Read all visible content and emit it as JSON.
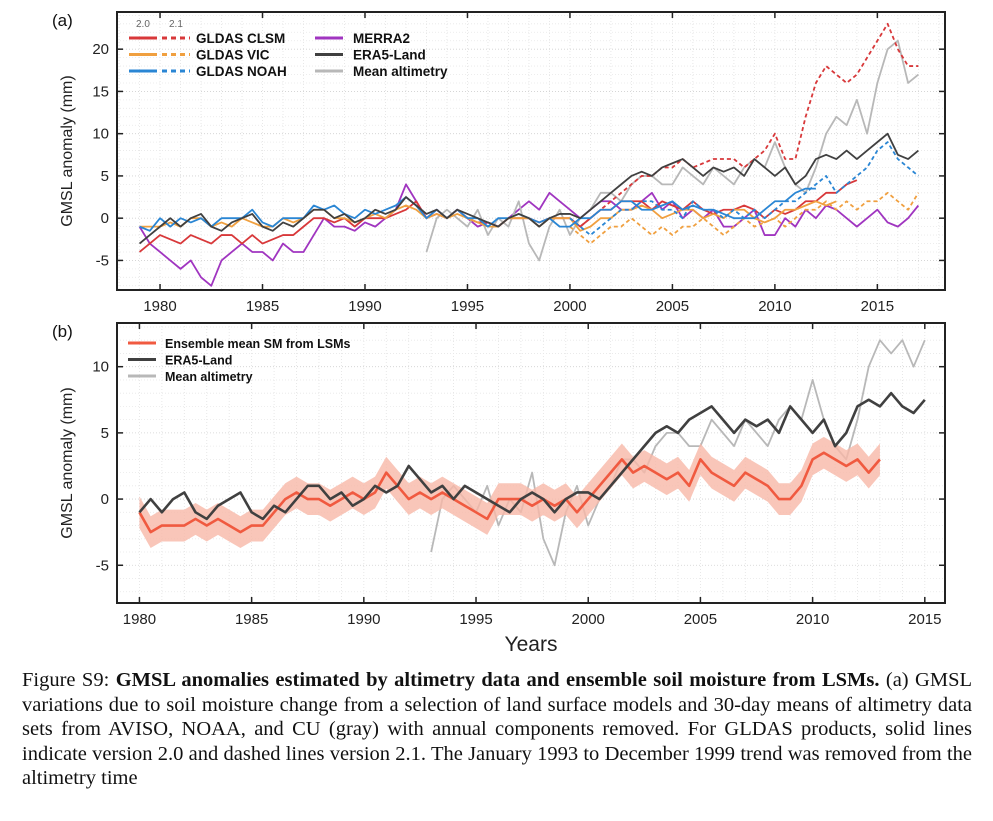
{
  "chart_data": [
    {
      "panel_label": "(a)",
      "type": "line",
      "ylabel": "GMSL anomaly (mm)",
      "xlabel": "",
      "xlim": [
        1977.9,
        2018.3
      ],
      "ylim": [
        -8.5,
        24.4
      ],
      "xticks": [
        1980,
        1985,
        1990,
        1995,
        2000,
        2005,
        2010,
        2015
      ],
      "yticks": [
        -5,
        0,
        5,
        10,
        15,
        20
      ],
      "grid": true,
      "legend_headers": [
        "2.0",
        "2.1"
      ],
      "series": [
        {
          "name": "MERRA2",
          "color": "#a035c0",
          "dash": false,
          "start": 1979,
          "step": 0.5,
          "values": [
            -1,
            -3,
            -4,
            -5,
            -6,
            -5,
            -7,
            -8,
            -5,
            -4,
            -3,
            -4,
            -4,
            -5,
            -3,
            -4,
            -4,
            -2,
            0,
            -1,
            -1,
            -1.5,
            -0.5,
            -1,
            0,
            1,
            4,
            2,
            0,
            1,
            0,
            1,
            0,
            -1,
            -0.5,
            -1,
            0,
            1,
            2,
            1,
            3,
            2,
            1,
            0,
            1,
            2,
            2,
            1,
            1,
            2,
            3,
            1,
            2,
            0,
            1,
            0,
            1,
            -1,
            -1,
            0,
            1,
            -2,
            -2,
            0,
            -1,
            1,
            0,
            1.5,
            1,
            0,
            -1,
            0,
            1,
            -0.5,
            -1,
            0,
            1.5
          ]
        },
        {
          "name": "Mean altimetry",
          "color": "#b8b8b8",
          "dash": false,
          "start": 1993,
          "step": 0.5,
          "values": [
            -4,
            0,
            1,
            0,
            -1,
            1,
            -2,
            0,
            -1,
            2,
            -3,
            -5,
            -1,
            1,
            -2,
            0,
            1,
            3,
            3,
            2,
            4,
            5,
            5,
            4,
            4,
            6,
            5,
            4,
            6,
            5,
            4,
            6,
            7,
            6,
            9,
            6,
            4,
            3,
            6,
            10,
            12,
            11,
            14,
            10,
            16,
            20,
            21,
            16,
            17
          ]
        },
        {
          "name": "GLDAS CLSM 2.0",
          "color": "#d8383a",
          "dash": false,
          "start": 1979,
          "step": 0.5,
          "values": [
            -4,
            -3,
            -2,
            -2.5,
            -3,
            -2,
            -2.5,
            -3,
            -2,
            -2,
            -3,
            -2,
            -3,
            -2.5,
            -2,
            -2,
            -1,
            0,
            0,
            -0.5,
            0,
            -1,
            0,
            0,
            0,
            0.5,
            1,
            2,
            0,
            0.5,
            0,
            1,
            0,
            -0.5,
            -0.5,
            -1,
            0,
            0,
            0,
            -0.5,
            0,
            0,
            0,
            -1,
            0,
            1,
            1,
            2,
            2,
            2,
            1,
            2,
            1.5,
            1,
            2,
            1,
            0.5,
            1,
            1,
            1.5,
            1,
            0,
            1,
            0.5,
            1,
            2,
            2,
            3,
            3,
            4,
            4.5
          ]
        },
        {
          "name": "GLDAS CLSM 2.1",
          "color": "#d8383a",
          "dash": true,
          "start": 2000,
          "step": 0.5,
          "values": [
            0,
            -1,
            0,
            1,
            2,
            3,
            4,
            5,
            5,
            6,
            6,
            7,
            6,
            6.5,
            7,
            7,
            7,
            6,
            7,
            8,
            10,
            7,
            7,
            12,
            16,
            18,
            17,
            16,
            17,
            19,
            21,
            23,
            20,
            18,
            18
          ]
        },
        {
          "name": "GLDAS VIC 2.0",
          "color": "#f0a040",
          "dash": false,
          "start": 1979,
          "step": 0.5,
          "values": [
            -1,
            -1,
            -1,
            -0.5,
            -1,
            0,
            0,
            -1,
            -0.5,
            -1,
            0,
            -0.5,
            -1,
            -1,
            0,
            -0.5,
            0,
            1,
            1,
            0,
            0,
            -0.5,
            0,
            0.5,
            0,
            1,
            1.5,
            1,
            0,
            0.5,
            0,
            0.5,
            0,
            -0.5,
            -1,
            -1,
            0,
            0,
            0,
            -1,
            0,
            0,
            0,
            -1.5,
            -1,
            0,
            0,
            1,
            1,
            1.5,
            1,
            0,
            0.5,
            1,
            1,
            0,
            0.5,
            0,
            1,
            1,
            0,
            -0.5,
            0,
            1,
            1,
            1.5,
            2,
            1.5,
            2
          ]
        },
        {
          "name": "GLDAS VIC 2.1",
          "color": "#f0a040",
          "dash": true,
          "start": 2000,
          "step": 0.5,
          "values": [
            -1,
            -2,
            -3,
            -2,
            -1,
            -1,
            0,
            -1,
            -2,
            -1,
            -2,
            -1,
            -1,
            0,
            -1,
            -2,
            -1,
            0,
            -1,
            -0.5,
            0,
            -1,
            0,
            1,
            1,
            2,
            1,
            2,
            1,
            2,
            2,
            3,
            2,
            1,
            3
          ]
        },
        {
          "name": "GLDAS NOAH 2.0",
          "color": "#2a86d4",
          "dash": false,
          "start": 1979,
          "step": 0.5,
          "values": [
            -1,
            -1.5,
            0,
            -1,
            0,
            -0.5,
            0,
            -1,
            0,
            0,
            0,
            1,
            -0.5,
            -1,
            0,
            0,
            0,
            1.5,
            1,
            1.5,
            0.5,
            0,
            1,
            0.5,
            1,
            1.5,
            2.5,
            1.5,
            0,
            1,
            0,
            1,
            0,
            0,
            -1,
            0,
            0,
            0.5,
            0,
            -0.5,
            0,
            -1,
            -1,
            0,
            0,
            1,
            1,
            2,
            2,
            1,
            1,
            1.5,
            2,
            1,
            1.5,
            1,
            1,
            0.5,
            0,
            0,
            0,
            1,
            2,
            2,
            3,
            3.5,
            3.5
          ]
        },
        {
          "name": "GLDAS NOAH 2.1",
          "color": "#2a86d4",
          "dash": true,
          "start": 2000,
          "step": 0.5,
          "values": [
            0,
            -1,
            -2,
            -1,
            0,
            1,
            1,
            2,
            2,
            1,
            1,
            0,
            2,
            1,
            1,
            0,
            1,
            0,
            1,
            0,
            1,
            2,
            2,
            3,
            4,
            5,
            3,
            4,
            5,
            6,
            8,
            9,
            7,
            6,
            5
          ]
        },
        {
          "name": "ERA5-Land",
          "color": "#404040",
          "dash": false,
          "start": 1979,
          "step": 0.5,
          "values": [
            -3,
            -2,
            -1,
            0,
            -1,
            0,
            0.5,
            -1,
            -1.5,
            -0.5,
            0,
            0.5,
            -1,
            -1.5,
            -0.5,
            -1,
            0,
            1,
            1,
            0,
            0.5,
            -0.5,
            0,
            1,
            0.5,
            1,
            2.5,
            1.5,
            0.5,
            1,
            0,
            1,
            0.5,
            0,
            -0.5,
            -1,
            0,
            0.5,
            0,
            -1,
            0,
            0.5,
            0.5,
            0,
            1,
            2,
            3,
            4,
            5,
            5.5,
            5,
            6,
            6.5,
            7,
            6,
            5,
            6,
            5.5,
            6,
            5,
            7,
            6,
            5,
            6,
            4,
            5,
            7,
            7.5,
            7,
            8,
            7,
            8,
            9,
            10,
            7.5,
            7,
            8
          ]
        }
      ],
      "legend": [
        {
          "label": "GLDAS CLSM",
          "color": "#d8383a",
          "versions": true
        },
        {
          "label": "GLDAS VIC",
          "color": "#f0a040",
          "versions": true
        },
        {
          "label": "GLDAS NOAH",
          "color": "#2a86d4",
          "versions": true
        },
        {
          "label": "MERRA2",
          "color": "#a035c0"
        },
        {
          "label": "ERA5-Land",
          "color": "#404040"
        },
        {
          "label": "Mean altimetry",
          "color": "#b8b8b8"
        }
      ]
    },
    {
      "panel_label": "(b)",
      "type": "line",
      "ylabel": "GMSL anomaly (mm)",
      "xlabel": "Years",
      "xlim": [
        1979.0,
        2015.9
      ],
      "ylim": [
        -7.85,
        13.3
      ],
      "xticks": [
        1980,
        1985,
        1990,
        1995,
        2000,
        2005,
        2010,
        2015
      ],
      "yticks": [
        -5,
        0,
        5,
        10
      ],
      "grid": true,
      "series": [
        {
          "name": "Mean altimetry",
          "color": "#b8b8b8",
          "start": 1993,
          "step": 0.5,
          "values": [
            -4,
            0,
            1,
            0,
            -1,
            1,
            -2,
            0,
            -1,
            2,
            -3,
            -5,
            -1,
            1,
            -2,
            0,
            1,
            3,
            3,
            2,
            4,
            5,
            5,
            4,
            4,
            6,
            5,
            4,
            6,
            5,
            4,
            6,
            7,
            6,
            9,
            6,
            4,
            3,
            6,
            10,
            12,
            11,
            12,
            10,
            12
          ]
        },
        {
          "name": "Ensemble mean SM from LSMs",
          "color": "#f05a40",
          "band_color": "#f8b8a8",
          "band": 1.2,
          "start": 1980,
          "step": 0.5,
          "values": [
            -1,
            -2.5,
            -2,
            -2,
            -2,
            -1.5,
            -2,
            -1.5,
            -2,
            -2.5,
            -2,
            -2,
            -1,
            0,
            0.5,
            0,
            0,
            -0.5,
            0,
            0.5,
            0,
            0.5,
            2,
            1,
            0,
            0.5,
            0,
            0.5,
            0,
            -0.5,
            -1,
            -1.5,
            0,
            0,
            0,
            -0.5,
            0,
            -0.5,
            0,
            -1,
            0,
            1,
            2,
            3,
            2,
            2.5,
            2,
            1.5,
            2,
            1,
            3,
            2,
            1.5,
            1,
            2,
            1.5,
            1,
            0,
            0,
            1,
            3,
            3.5,
            3,
            2.5,
            3,
            2,
            3
          ]
        },
        {
          "name": "ERA5-Land",
          "color": "#404040",
          "start": 1980,
          "step": 0.5,
          "values": [
            -1,
            0,
            -1,
            0,
            0.5,
            -1,
            -1.5,
            -0.5,
            0,
            0.5,
            -1,
            -1.5,
            -0.5,
            -1,
            0,
            1,
            1,
            0,
            0.5,
            -0.5,
            0,
            1,
            0.5,
            1,
            2.5,
            1.5,
            0.5,
            1,
            0,
            1,
            0.5,
            0,
            -0.5,
            -1,
            0,
            0.5,
            0,
            -1,
            0,
            0.5,
            0.5,
            0,
            1,
            2,
            3,
            4,
            5,
            5.5,
            5,
            6,
            6.5,
            7,
            6,
            5,
            6,
            5.5,
            6,
            5,
            7,
            6,
            5,
            6,
            4,
            5,
            7,
            7.5,
            7,
            8,
            7,
            6.5,
            7.5
          ]
        }
      ],
      "legend": [
        {
          "label": "Ensemble mean SM from LSMs",
          "color": "#f05a40"
        },
        {
          "label": "ERA5-Land",
          "color": "#404040"
        },
        {
          "label": "Mean altimetry",
          "color": "#b8b8b8"
        }
      ]
    }
  ],
  "caption": {
    "figure_label": "Figure S9:",
    "bold_title": "GMSL anomalies estimated by altimetry data and ensemble soil moisture from LSMs.",
    "text": " (a) GMSL variations due to soil moisture change from a selection of land surface models and 30-day means of altimetry data sets from AVISO, NOAA, and CU (gray) with annual components removed.  For GLDAS products, solid lines indicate version 2.0 and dashed lines version 2.1.  The January 1993 to December 1999 trend was removed from the altimetry time"
  }
}
